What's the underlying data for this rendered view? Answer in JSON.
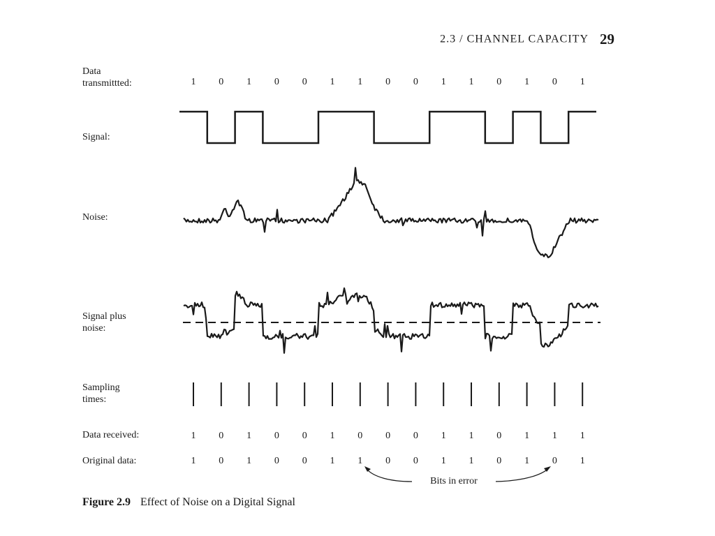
{
  "header": {
    "section": "2.3 / CHANNEL CAPACITY",
    "page_number": "29"
  },
  "rows": {
    "data_transmitted": {
      "label_line1": "Data",
      "label_line2": "transmittted:"
    },
    "signal": {
      "label": "Signal:"
    },
    "noise": {
      "label": "Noise:"
    },
    "signal_plus_noise": {
      "label_line1": "Signal plus",
      "label_line2": "noise:"
    },
    "sampling_times": {
      "label_line1": "Sampling",
      "label_line2": "times:"
    },
    "data_received": {
      "label": "Data received:"
    },
    "original_data": {
      "label": "Original data:"
    }
  },
  "bits": {
    "transmitted": [
      "1",
      "0",
      "1",
      "0",
      "0",
      "1",
      "1",
      "0",
      "0",
      "1",
      "1",
      "0",
      "1",
      "0",
      "1"
    ],
    "received": [
      "1",
      "0",
      "1",
      "0",
      "0",
      "1",
      "0",
      "0",
      "0",
      "1",
      "1",
      "0",
      "1",
      "1",
      "1"
    ],
    "original": [
      "1",
      "0",
      "1",
      "0",
      "0",
      "1",
      "1",
      "0",
      "0",
      "1",
      "1",
      "0",
      "1",
      "0",
      "1"
    ]
  },
  "errors": {
    "label": "Bits in error"
  },
  "caption": {
    "number": "Figure 2.9",
    "text": "Effect of Noise on a Digital Signal"
  }
}
